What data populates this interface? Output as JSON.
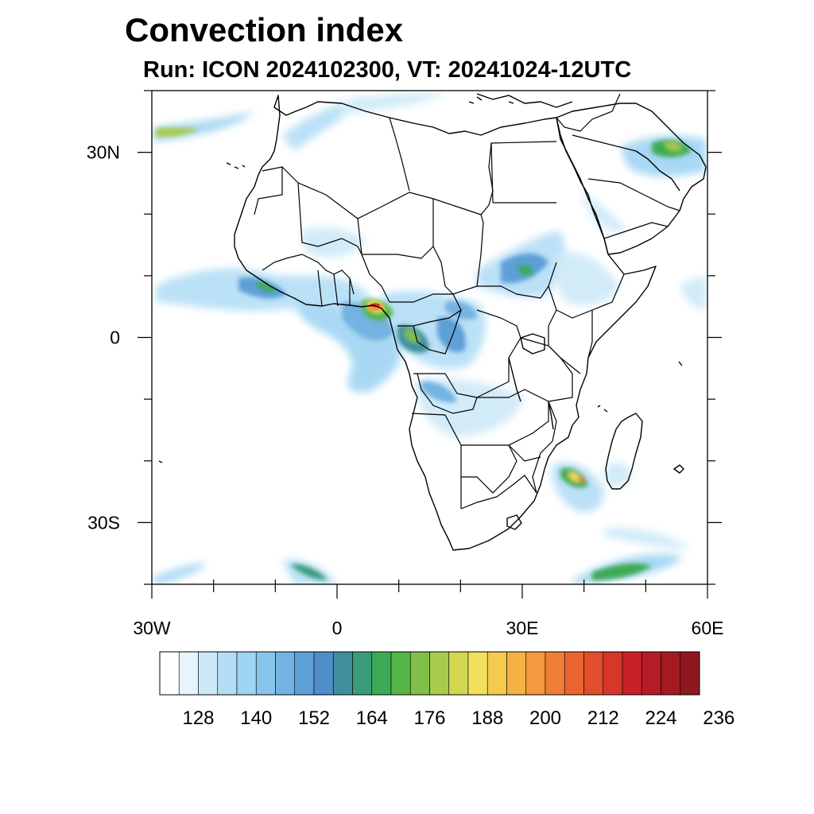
{
  "title": "Convection index",
  "subtitle": "Run: ICON 2024102300,  VT: 20241024-12UTC",
  "map": {
    "region": "Africa",
    "lon_range": [
      -30,
      60
    ],
    "lat_range": [
      -40,
      40
    ],
    "lat_labels": [
      {
        "lat": 30,
        "text": "30N"
      },
      {
        "lat": 0,
        "text": "0"
      },
      {
        "lat": -30,
        "text": "30S"
      }
    ],
    "lon_labels": [
      {
        "lon": -30,
        "text": "30W"
      },
      {
        "lon": 0,
        "text": "0"
      },
      {
        "lon": 30,
        "text": "30E"
      },
      {
        "lon": 60,
        "text": "60E"
      }
    ],
    "convection_areas": [
      {
        "name": "Gulf of Guinea / Cameroon",
        "lon": 6,
        "lat": 4,
        "peak": "high"
      },
      {
        "name": "Gabon / Congo",
        "lon": 11,
        "lat": 0,
        "peak": "moderate"
      },
      {
        "name": "West Africa coast",
        "lon": -12,
        "lat": 7,
        "peak": "moderate"
      },
      {
        "name": "Ethiopia / Sudan",
        "lon": 30,
        "lat": 10,
        "peak": "moderate"
      },
      {
        "name": "Madagascar Channel",
        "lon": 40,
        "lat": -23,
        "peak": "high"
      },
      {
        "name": "Persian Gulf",
        "lon": 50,
        "lat": 28,
        "peak": "moderate"
      },
      {
        "name": "Southern Ocean SE",
        "lon": 45,
        "lat": -38,
        "peak": "moderate"
      }
    ]
  },
  "colorbar": {
    "colors": [
      "#ffffff",
      "#e6f4fb",
      "#cde9f8",
      "#b4def6",
      "#9fd4f3",
      "#88c4eb",
      "#73b2e2",
      "#5e9fd8",
      "#4f8dcb",
      "#3f8f9e",
      "#3a9c78",
      "#3caa55",
      "#55b547",
      "#7fc04a",
      "#a8cb4c",
      "#d2d752",
      "#f0e05a",
      "#f6c94f",
      "#f6b145",
      "#f4993d",
      "#ef7f36",
      "#ea6530",
      "#e24d2c",
      "#d83629",
      "#c82127",
      "#b71b25",
      "#a31a22",
      "#8f171f"
    ],
    "labels": [
      "128",
      "140",
      "152",
      "164",
      "176",
      "188",
      "200",
      "212",
      "224",
      "236"
    ]
  }
}
